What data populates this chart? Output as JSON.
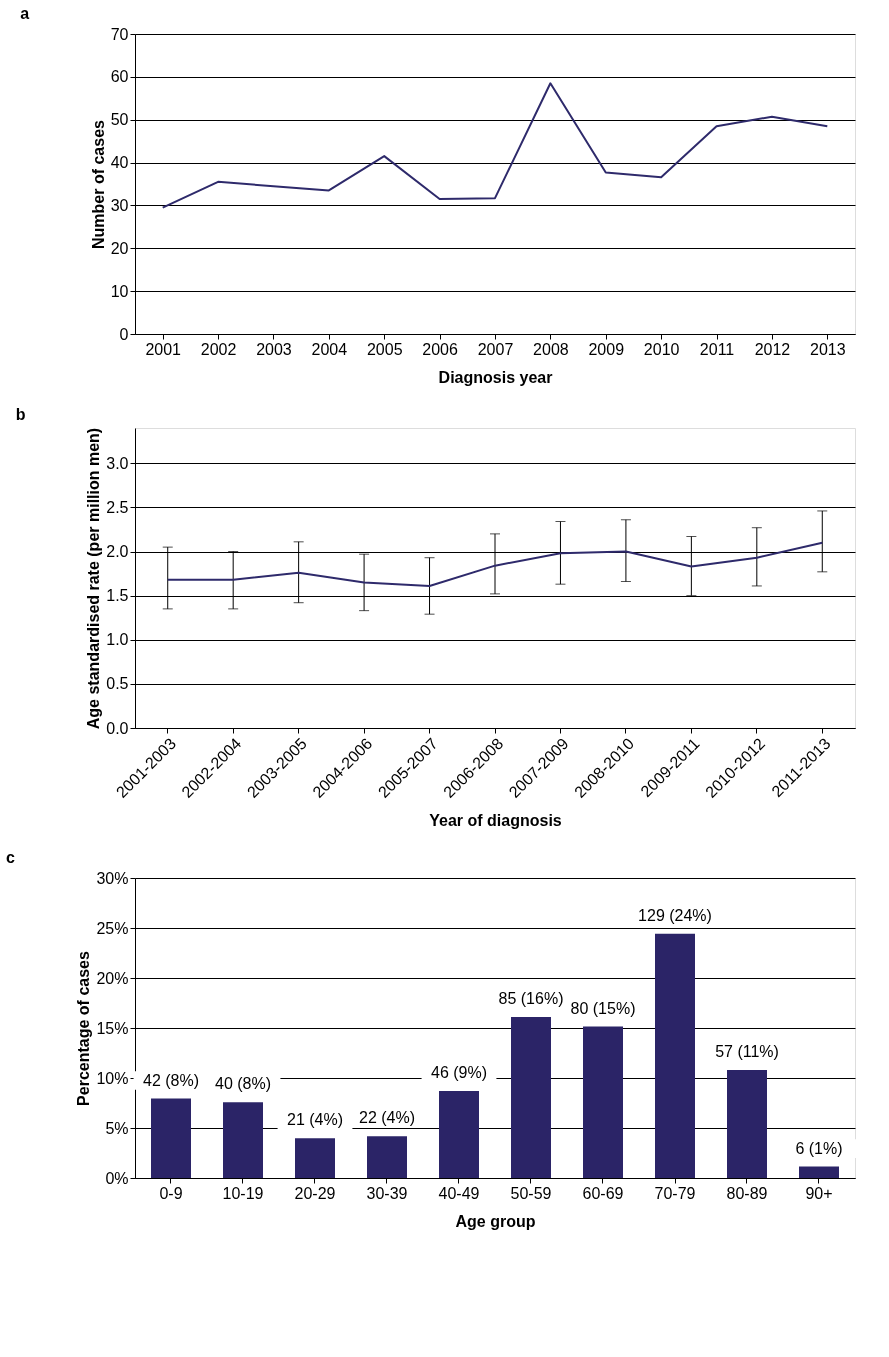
{
  "chart_data": [
    {
      "type": "line",
      "title": "a",
      "xlabel": "Diagnosis year",
      "ylabel": "Number of cases",
      "categories": [
        "2001",
        "2002",
        "2003",
        "2004",
        "2005",
        "2006",
        "2007",
        "2008",
        "2009",
        "2010",
        "2011",
        "2012",
        "2013"
      ],
      "series": [
        {
          "color": "#2e2a6b",
          "values": [
            29.5,
            35.5,
            34.5,
            33.5,
            41.5,
            31.5,
            31.7,
            58.5,
            37.7,
            36.6,
            48.5,
            50.7,
            48.5
          ]
        }
      ],
      "ylim": [
        0,
        70
      ],
      "yticks": [
        0,
        10,
        20,
        30,
        40,
        50,
        60,
        70
      ],
      "grid": "y",
      "marker": "none",
      "line_style": "solid"
    },
    {
      "type": "line",
      "title": "b",
      "xlabel": "Year of diagnosis",
      "ylabel": "Age standardised rate (per million men)",
      "categories": [
        "2001-2003",
        "2002-2004",
        "2003-2005",
        "2004-2006",
        "2005-2007",
        "2006-2008",
        "2007-2009",
        "2008-2010",
        "2009-2011",
        "2010-2012",
        "2011-2013"
      ],
      "series": [
        {
          "color": "#2e2a6b",
          "values": [
            1.68,
            1.68,
            1.76,
            1.65,
            1.61,
            1.84,
            1.98,
            2.0,
            1.83,
            1.93,
            2.1
          ],
          "errors": [
            [
              1.35,
              2.05
            ],
            [
              1.35,
              2.0
            ],
            [
              1.42,
              2.11
            ],
            [
              1.33,
              1.97
            ],
            [
              1.29,
              1.93
            ],
            [
              1.52,
              2.2
            ],
            [
              1.63,
              2.34
            ],
            [
              1.66,
              2.36
            ],
            [
              1.5,
              2.17
            ],
            [
              1.61,
              2.27
            ],
            [
              1.77,
              2.46
            ]
          ]
        }
      ],
      "ylim": [
        0,
        3.4
      ],
      "yticks": [
        {
          "value": 0,
          "label": "0.0"
        },
        {
          "value": 0.5,
          "label": "0.5"
        },
        {
          "value": 1,
          "label": "1.0"
        },
        {
          "value": 1.5,
          "label": "1.5"
        },
        {
          "value": 2,
          "label": "2.0"
        },
        {
          "value": 2.5,
          "label": "2.5"
        },
        {
          "value": 3,
          "label": "3.0"
        }
      ],
      "grid": "y",
      "marker": "none",
      "line_style": "solid"
    },
    {
      "type": "bar",
      "title": "c",
      "xlabel": "Age group",
      "ylabel": "Percentage of cases",
      "categories": [
        "0-9",
        "10-19",
        "20-29",
        "30-39",
        "40-49",
        "50-59",
        "60-69",
        "70-79",
        "80-89",
        "90+"
      ],
      "values": [
        7.95,
        7.58,
        3.98,
        4.17,
        8.71,
        16.1,
        15.15,
        24.43,
        10.8,
        1.14
      ],
      "color": "#2b2467",
      "value_labels": [
        "42 (8%)",
        "40 (8%)",
        "21 (4%)",
        "22 (4%)",
        "46 (9%)",
        "85 (16%)",
        "80 (15%)",
        "129 (24%)",
        "57 (11%)",
        "6 (1%)"
      ],
      "ylim": [
        0,
        30
      ],
      "yticks": [
        {
          "value": 0,
          "label": "0%"
        },
        {
          "value": 5,
          "label": "5%"
        },
        {
          "value": 10,
          "label": "10%"
        },
        {
          "value": 15,
          "label": "15%"
        },
        {
          "value": 20,
          "label": "20%"
        },
        {
          "value": 25,
          "label": "25%"
        },
        {
          "value": 30,
          "label": "30%"
        }
      ],
      "grid": "y"
    }
  ]
}
